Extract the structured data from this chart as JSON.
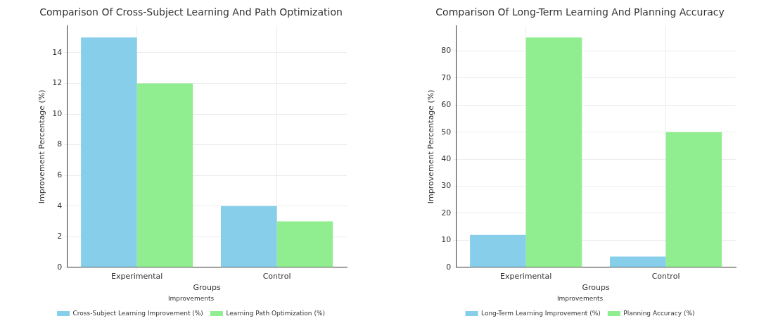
{
  "chart_data": [
    {
      "type": "bar",
      "title": "Comparison Of Cross-Subject Learning And Path Optimization",
      "xlabel": "Groups",
      "ylabel": "Improvement Percentage (%)",
      "legend_title": "Improvements",
      "categories": [
        "Experimental",
        "Control"
      ],
      "series": [
        {
          "name": "Cross-Subject Learning Improvement (%)",
          "color": "#87ceeb",
          "values": [
            15,
            4
          ]
        },
        {
          "name": "Learning Path Optimization (%)",
          "color": "#90ee90",
          "values": [
            12,
            3
          ]
        }
      ],
      "ylim": [
        0,
        15.75
      ],
      "yticks": [
        0,
        2,
        4,
        6,
        8,
        10,
        12,
        14
      ],
      "grid": true,
      "legend": "bottom"
    },
    {
      "type": "bar",
      "title": "Comparison Of Long-Term Learning And Planning Accuracy",
      "xlabel": "Groups",
      "ylabel": "Improvement Percentage (%)",
      "legend_title": "Improvements",
      "categories": [
        "Experimental",
        "Control"
      ],
      "series": [
        {
          "name": "Long-Term Learning Improvement (%)",
          "color": "#87ceeb",
          "values": [
            12,
            4
          ]
        },
        {
          "name": "Planning Accuracy (%)",
          "color": "#90ee90",
          "values": [
            85,
            50
          ]
        }
      ],
      "ylim": [
        0,
        89.25
      ],
      "yticks": [
        0,
        10,
        20,
        30,
        40,
        50,
        60,
        70,
        80
      ],
      "grid": true,
      "legend": "bottom"
    }
  ]
}
